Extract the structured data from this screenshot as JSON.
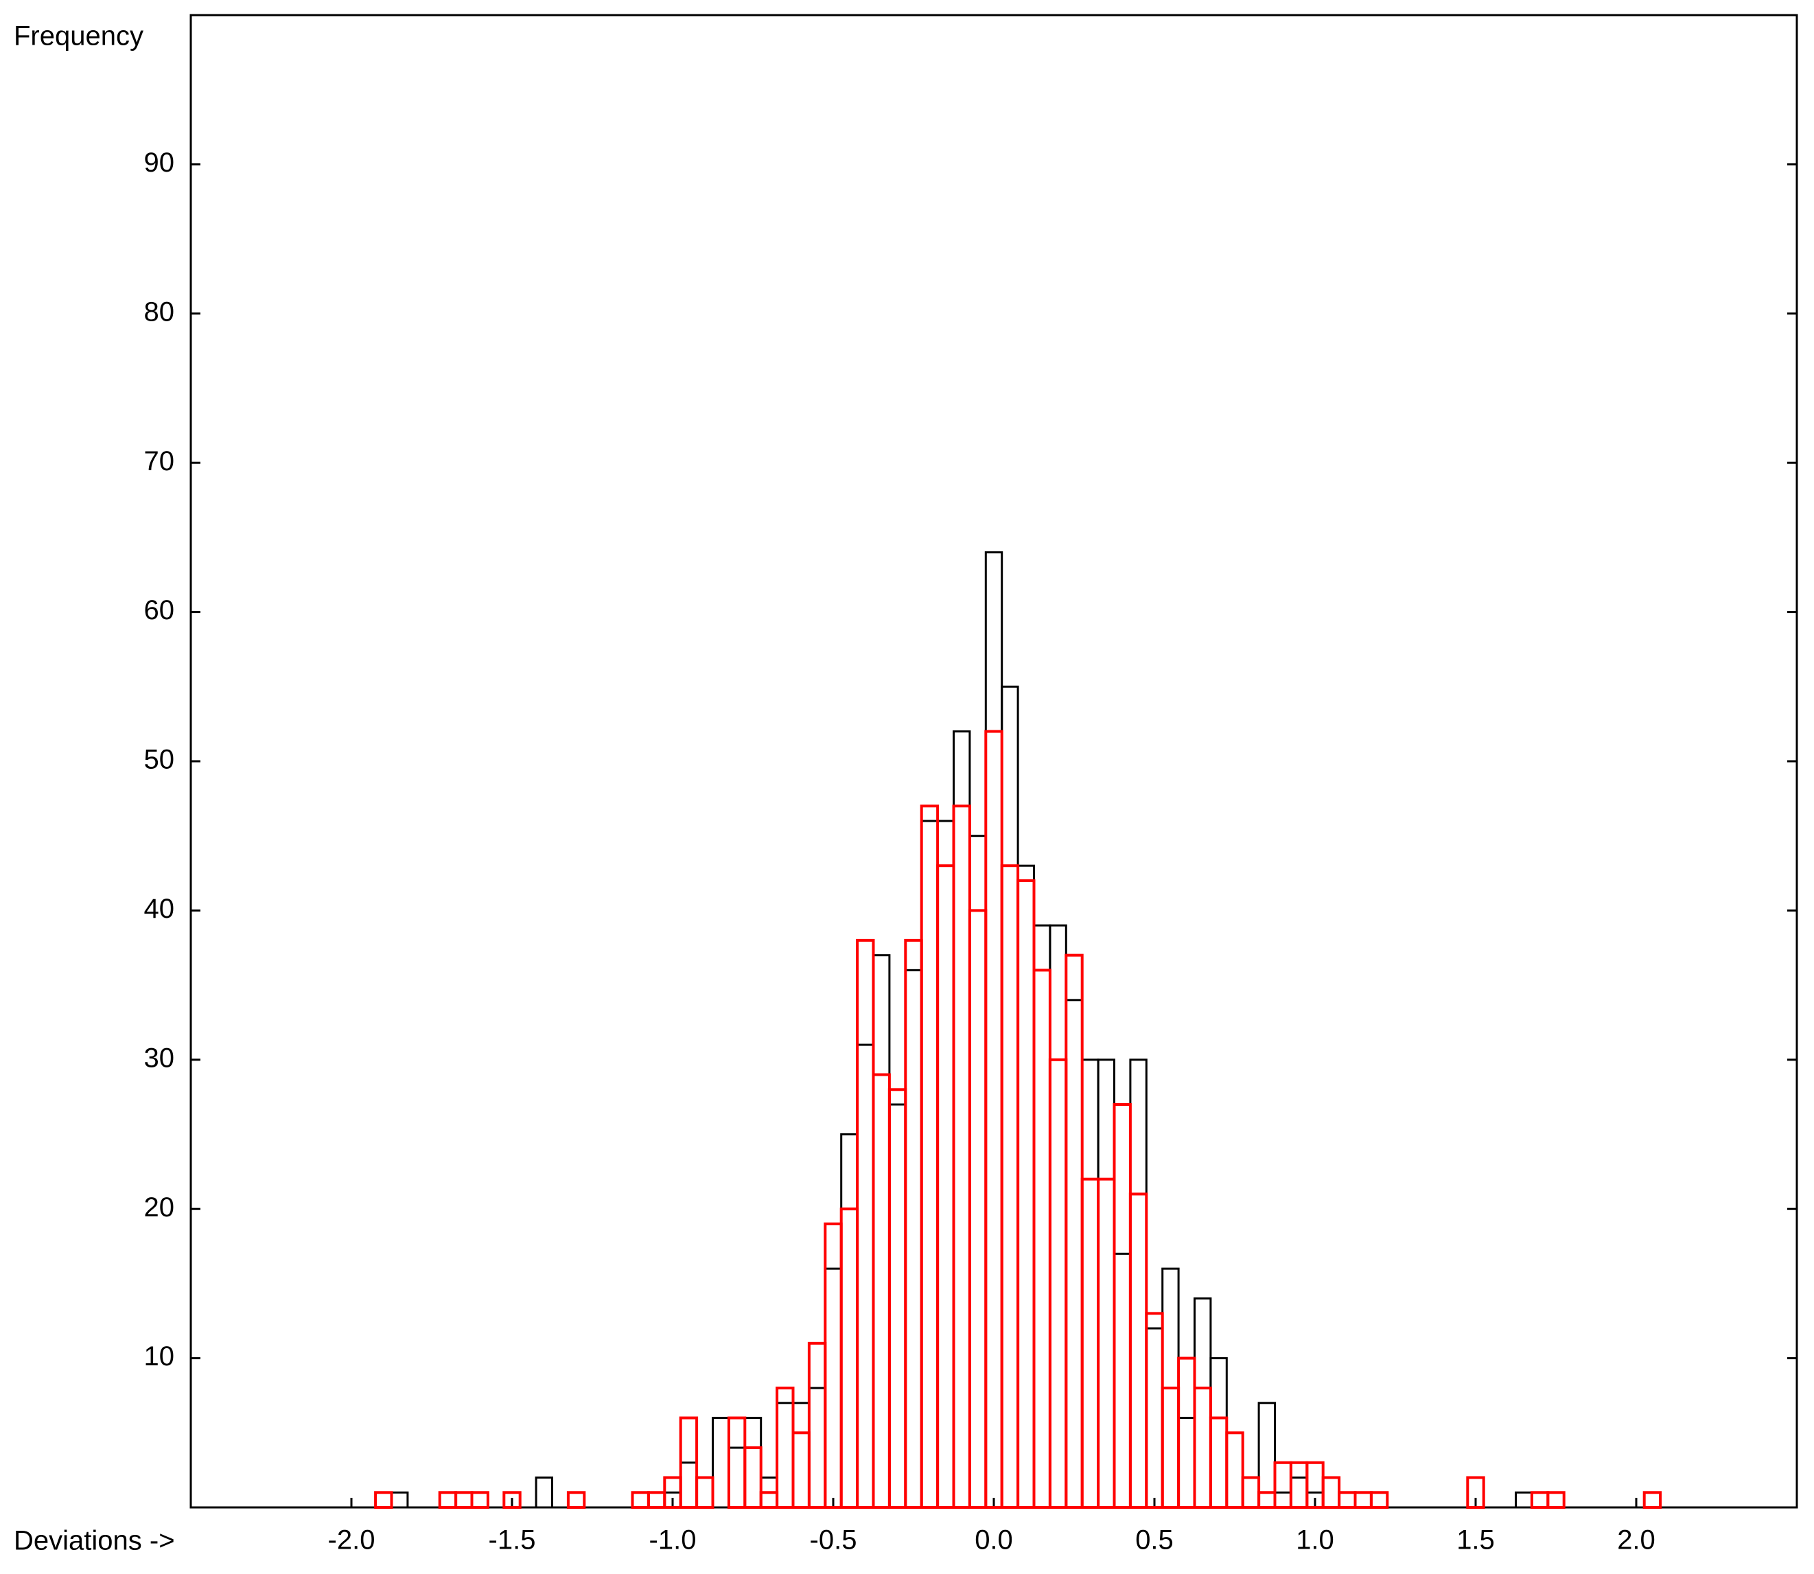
{
  "chart_data": {
    "type": "histogram",
    "xlabel": "Deviations ->",
    "ylabel": "Frequency",
    "bins": [
      -1.925,
      -1.875,
      -1.825,
      -1.775,
      -1.725,
      -1.675,
      -1.625,
      -1.575,
      -1.525,
      -1.475,
      -1.425,
      -1.375,
      -1.325,
      -1.275,
      -1.225,
      -1.175,
      -1.125,
      -1.075,
      -1.025,
      -0.975,
      -0.925,
      -0.875,
      -0.825,
      -0.775,
      -0.725,
      -0.675,
      -0.625,
      -0.575,
      -0.525,
      -0.475,
      -0.425,
      -0.375,
      -0.325,
      -0.275,
      -0.225,
      -0.175,
      -0.125,
      -0.075,
      -0.025,
      0.025,
      0.075,
      0.125,
      0.175,
      0.225,
      0.275,
      0.325,
      0.375,
      0.425,
      0.475,
      0.525,
      0.575,
      0.625,
      0.675,
      0.725,
      0.775,
      0.825,
      0.875,
      0.925,
      0.975,
      1.025,
      1.075,
      1.125,
      1.175,
      1.225,
      1.275,
      1.325,
      1.375,
      1.425,
      1.475,
      1.525,
      1.575,
      1.625,
      1.675,
      1.725,
      1.775,
      1.825,
      1.875,
      1.925,
      1.975,
      2.025,
      2.075,
      2.125
    ],
    "series": [
      {
        "color": "#000000",
        "values": [
          0,
          1,
          0,
          0,
          0,
          0,
          0,
          0,
          1,
          0,
          2,
          0,
          0,
          0,
          0,
          0,
          0,
          1,
          1,
          3,
          2,
          6,
          4,
          6,
          2,
          7,
          7,
          8,
          16,
          25,
          31,
          37,
          27,
          36,
          46,
          46,
          52,
          45,
          64,
          55,
          43,
          39,
          39,
          34,
          30,
          30,
          17,
          30,
          12,
          16,
          6,
          14,
          10,
          5,
          2,
          7,
          1,
          2,
          1,
          2,
          1,
          0,
          0,
          0,
          0,
          0,
          0,
          0,
          0,
          0,
          0,
          1,
          1,
          0,
          0,
          0,
          0,
          0,
          0,
          1,
          0
        ]
      },
      {
        "color": "#ff0000",
        "values": [
          1,
          0,
          0,
          0,
          1,
          1,
          1,
          0,
          1,
          0,
          0,
          0,
          1,
          0,
          0,
          0,
          1,
          1,
          2,
          6,
          2,
          0,
          6,
          4,
          1,
          8,
          5,
          11,
          19,
          20,
          38,
          29,
          28,
          38,
          47,
          43,
          47,
          40,
          52,
          43,
          42,
          36,
          30,
          37,
          22,
          22,
          27,
          21,
          13,
          8,
          10,
          8,
          6,
          5,
          2,
          1,
          3,
          3,
          3,
          2,
          1,
          1,
          1,
          0,
          0,
          0,
          0,
          0,
          2,
          0,
          0,
          0,
          1,
          1,
          0,
          0,
          0,
          0,
          0,
          1,
          0
        ]
      }
    ],
    "xlim": [
      -2.5,
      2.5
    ],
    "ylim": [
      0,
      100
    ],
    "xticks": [
      {
        "value": -2,
        "label": "-2.0"
      },
      {
        "value": -1.5,
        "label": "-1.5"
      },
      {
        "value": -1,
        "label": "-1.0"
      },
      {
        "value": -0.5,
        "label": "-0.5"
      },
      {
        "value": 0,
        "label": "0.0"
      },
      {
        "value": 0.5,
        "label": "0.5"
      },
      {
        "value": 1,
        "label": "1.0"
      },
      {
        "value": 1.5,
        "label": "1.5"
      },
      {
        "value": 2,
        "label": "2.0"
      }
    ],
    "yticks": [
      10,
      20,
      30,
      40,
      50,
      60,
      70,
      80,
      90
    ]
  }
}
